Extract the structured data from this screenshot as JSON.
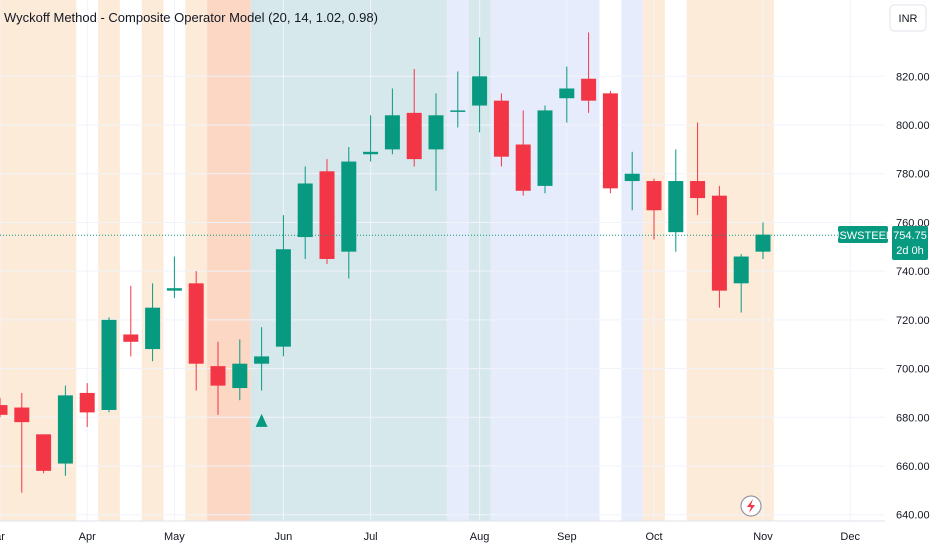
{
  "chart_data": {
    "type": "candlestick",
    "title": "Wyckoff Method - Composite Operator Model (20, 14, 1.02, 0.98)",
    "currency": "INR",
    "symbol": "JSWSTEEL",
    "last_price": "754.75",
    "countdown": "2d 0h",
    "y_ticks": [
      "640.00",
      "660.00",
      "680.00",
      "700.00",
      "720.00",
      "740.00",
      "760.00",
      "780.00",
      "800.00",
      "820.00"
    ],
    "ylim": [
      636,
      845
    ],
    "x_ticks": [
      {
        "label": "ar",
        "week": 0
      },
      {
        "label": "Apr",
        "week": 4
      },
      {
        "label": "May",
        "week": 8
      },
      {
        "label": "Jun",
        "week": 13
      },
      {
        "label": "Jul",
        "week": 17
      },
      {
        "label": "Aug",
        "week": 22
      },
      {
        "label": "Sep",
        "week": 26
      },
      {
        "label": "Oct",
        "week": 30
      },
      {
        "label": "Nov",
        "week": 35
      },
      {
        "label": "Dec",
        "week": 39
      }
    ],
    "candles": [
      {
        "o": 685,
        "h": 688,
        "l": 680,
        "c": 681
      },
      {
        "o": 684,
        "h": 690,
        "l": 649,
        "c": 678
      },
      {
        "o": 673,
        "h": 673,
        "l": 657,
        "c": 658
      },
      {
        "o": 661,
        "h": 693,
        "l": 656,
        "c": 689
      },
      {
        "o": 690,
        "h": 694,
        "l": 676,
        "c": 682
      },
      {
        "o": 683,
        "h": 721,
        "l": 682,
        "c": 720
      },
      {
        "o": 714,
        "h": 734,
        "l": 705,
        "c": 711
      },
      {
        "o": 708,
        "h": 735,
        "l": 703,
        "c": 725
      },
      {
        "o": 732,
        "h": 746,
        "l": 729,
        "c": 733
      },
      {
        "o": 735,
        "h": 740,
        "l": 691,
        "c": 702
      },
      {
        "o": 701,
        "h": 711,
        "l": 681,
        "c": 693
      },
      {
        "o": 692,
        "h": 712,
        "l": 687,
        "c": 702
      },
      {
        "o": 702,
        "h": 717,
        "l": 691,
        "c": 705
      },
      {
        "o": 709,
        "h": 763,
        "l": 705,
        "c": 749
      },
      {
        "o": 754,
        "h": 783,
        "l": 745,
        "c": 776
      },
      {
        "o": 781,
        "h": 786,
        "l": 743,
        "c": 745
      },
      {
        "o": 748,
        "h": 791,
        "l": 737,
        "c": 785
      },
      {
        "o": 788,
        "h": 804,
        "l": 785,
        "c": 789
      },
      {
        "o": 790,
        "h": 815,
        "l": 788,
        "c": 804
      },
      {
        "o": 805,
        "h": 823,
        "l": 783,
        "c": 786
      },
      {
        "o": 790,
        "h": 813,
        "l": 773,
        "c": 804
      },
      {
        "o": 806,
        "h": 822,
        "l": 799,
        "c": 806
      },
      {
        "o": 808,
        "h": 836,
        "l": 797,
        "c": 820
      },
      {
        "o": 810,
        "h": 813,
        "l": 783,
        "c": 787
      },
      {
        "o": 792,
        "h": 806,
        "l": 771,
        "c": 773
      },
      {
        "o": 775,
        "h": 808,
        "l": 772,
        "c": 806
      },
      {
        "o": 811,
        "h": 824,
        "l": 801,
        "c": 815
      },
      {
        "o": 819,
        "h": 838,
        "l": 805,
        "c": 810
      },
      {
        "o": 813,
        "h": 814,
        "l": 772,
        "c": 774
      },
      {
        "o": 777,
        "h": 789,
        "l": 765,
        "c": 780
      },
      {
        "o": 777,
        "h": 778,
        "l": 753,
        "c": 765
      },
      {
        "o": 756,
        "h": 790,
        "l": 748,
        "c": 777
      },
      {
        "o": 777,
        "h": 801,
        "l": 763,
        "c": 770
      },
      {
        "o": 771,
        "h": 775,
        "l": 725,
        "c": 732
      },
      {
        "o": 735,
        "h": 747,
        "l": 723,
        "c": 746
      },
      {
        "o": 748,
        "h": 760,
        "l": 745,
        "c": 755
      }
    ],
    "shaded_zones": [
      {
        "from": -0.5,
        "to": 3.5,
        "color": "#fdebd9"
      },
      {
        "from": 4.5,
        "to": 5.5,
        "color": "#fdebd9"
      },
      {
        "from": 6.5,
        "to": 7.5,
        "color": "#fdebd9"
      },
      {
        "from": 8.5,
        "to": 9.5,
        "color": "#fdebd9"
      },
      {
        "from": 9.5,
        "to": 11.5,
        "color": "#fbd7c4"
      },
      {
        "from": 11.5,
        "to": 20.5,
        "color": "#d7e8ed"
      },
      {
        "from": 20.5,
        "to": 21.5,
        "color": "#e6ecfb"
      },
      {
        "from": 21.5,
        "to": 22.5,
        "color": "#d7e8ed"
      },
      {
        "from": 22.5,
        "to": 27.5,
        "color": "#e6ecfb"
      },
      {
        "from": 28.5,
        "to": 29.5,
        "color": "#e6ecfb"
      },
      {
        "from": 29.5,
        "to": 30.5,
        "color": "#fdebd9"
      },
      {
        "from": 31.5,
        "to": 35.5,
        "color": "#fdebd9"
      }
    ],
    "signals": [
      {
        "week": 12,
        "type": "buy",
        "price": 681
      }
    ],
    "colors": {
      "up": "#089981",
      "down": "#f23645",
      "grid": "#f0f3fa",
      "text": "#131722",
      "price_line": "#089981"
    }
  }
}
